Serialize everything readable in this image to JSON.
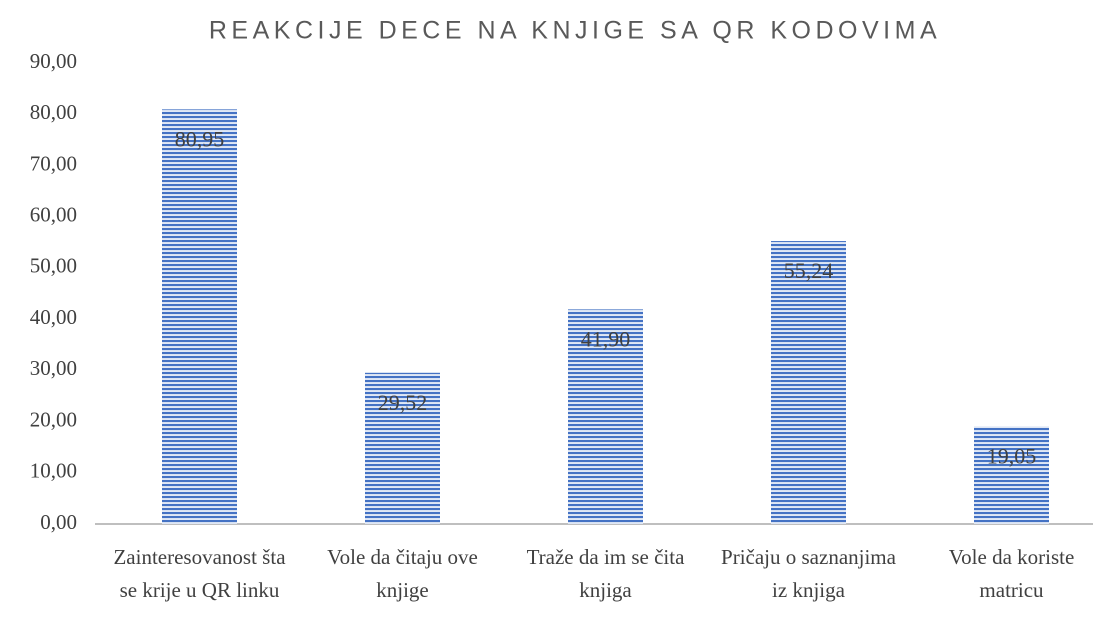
{
  "chart_data": {
    "type": "bar",
    "title": "REAKCIJE DECE NA KNJIGE SA QR KODOVIMA",
    "categories": [
      "Zainteresovanost šta se krije u QR linku",
      "Vole da čitaju ove knjige",
      "Traže da im se čita knjiga",
      "Pričaju o saznanjima iz knjiga",
      "Vole da koriste matricu"
    ],
    "values": [
      80.95,
      29.52,
      41.9,
      55.24,
      19.05
    ],
    "value_labels": [
      "80,95",
      "29,52",
      "41,90",
      "55,24",
      "19,05"
    ],
    "color": "#4472c4",
    "ylim": [
      0,
      90
    ],
    "yticks": [
      {
        "value": 0,
        "label": "0,00"
      },
      {
        "value": 10,
        "label": "10,00"
      },
      {
        "value": 20,
        "label": "20,00"
      },
      {
        "value": 30,
        "label": "30,00"
      },
      {
        "value": 40,
        "label": "40,00"
      },
      {
        "value": 50,
        "label": "50,00"
      },
      {
        "value": 60,
        "label": "60,00"
      },
      {
        "value": 70,
        "label": "70,00"
      },
      {
        "value": 80,
        "label": "80,00"
      },
      {
        "value": 90,
        "label": "90,00"
      }
    ],
    "grid": false
  }
}
